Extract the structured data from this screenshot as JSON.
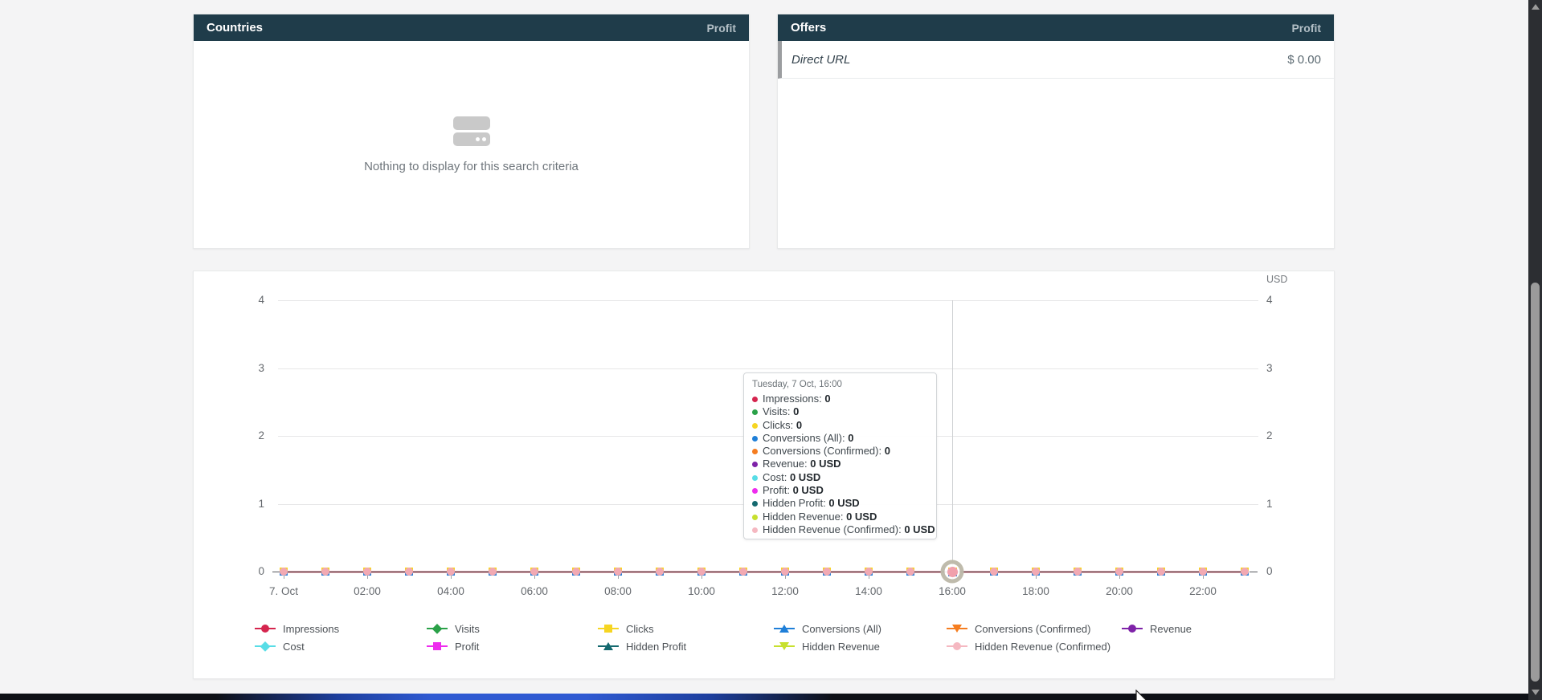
{
  "top_panels": {
    "countries": {
      "title": "Countries",
      "metric_label": "Profit",
      "empty_text": "Nothing to display for this search criteria"
    },
    "offers": {
      "title": "Offers",
      "metric_label": "Profit",
      "rows": [
        {
          "name": "Direct URL",
          "value": "$ 0.00"
        }
      ]
    }
  },
  "chart_data": {
    "type": "line",
    "title": "",
    "unit_label": "USD",
    "xlabel": "",
    "ylabel": "",
    "ylim": [
      0,
      4
    ],
    "yticks": [
      0,
      1,
      2,
      3,
      4
    ],
    "y_axis_sides": "both",
    "grid": true,
    "legend_position": "bottom",
    "x": [
      "00:00",
      "01:00",
      "02:00",
      "03:00",
      "04:00",
      "05:00",
      "06:00",
      "07:00",
      "08:00",
      "09:00",
      "10:00",
      "11:00",
      "12:00",
      "13:00",
      "14:00",
      "15:00",
      "16:00",
      "17:00",
      "18:00",
      "19:00",
      "20:00",
      "21:00",
      "22:00",
      "23:00"
    ],
    "x_tick_labels": [
      "7. Oct",
      "02:00",
      "04:00",
      "06:00",
      "08:00",
      "10:00",
      "12:00",
      "14:00",
      "16:00",
      "18:00",
      "20:00",
      "22:00"
    ],
    "x_tick_every": 2,
    "hovered_point": {
      "x_index": 16,
      "x_label": "16:00"
    },
    "series": [
      {
        "name": "Impressions",
        "color": "#d5254e",
        "marker": "circle",
        "values": [
          0,
          0,
          0,
          0,
          0,
          0,
          0,
          0,
          0,
          0,
          0,
          0,
          0,
          0,
          0,
          0,
          0,
          0,
          0,
          0,
          0,
          0,
          0,
          0
        ]
      },
      {
        "name": "Visits",
        "color": "#2aa148",
        "marker": "diamond",
        "values": [
          0,
          0,
          0,
          0,
          0,
          0,
          0,
          0,
          0,
          0,
          0,
          0,
          0,
          0,
          0,
          0,
          0,
          0,
          0,
          0,
          0,
          0,
          0,
          0
        ]
      },
      {
        "name": "Clicks",
        "color": "#f6d522",
        "marker": "square",
        "values": [
          0,
          0,
          0,
          0,
          0,
          0,
          0,
          0,
          0,
          0,
          0,
          0,
          0,
          0,
          0,
          0,
          0,
          0,
          0,
          0,
          0,
          0,
          0,
          0
        ]
      },
      {
        "name": "Conversions (All)",
        "color": "#1f7fd8",
        "marker": "triangle-up",
        "values": [
          0,
          0,
          0,
          0,
          0,
          0,
          0,
          0,
          0,
          0,
          0,
          0,
          0,
          0,
          0,
          0,
          0,
          0,
          0,
          0,
          0,
          0,
          0,
          0
        ]
      },
      {
        "name": "Conversions (Confirmed)",
        "color": "#f57d20",
        "marker": "triangle-down",
        "values": [
          0,
          0,
          0,
          0,
          0,
          0,
          0,
          0,
          0,
          0,
          0,
          0,
          0,
          0,
          0,
          0,
          0,
          0,
          0,
          0,
          0,
          0,
          0,
          0
        ]
      },
      {
        "name": "Revenue",
        "color": "#7e22a8",
        "marker": "circle",
        "values": [
          0,
          0,
          0,
          0,
          0,
          0,
          0,
          0,
          0,
          0,
          0,
          0,
          0,
          0,
          0,
          0,
          0,
          0,
          0,
          0,
          0,
          0,
          0,
          0
        ]
      },
      {
        "name": "Cost",
        "color": "#58dde6",
        "marker": "diamond",
        "values": [
          0,
          0,
          0,
          0,
          0,
          0,
          0,
          0,
          0,
          0,
          0,
          0,
          0,
          0,
          0,
          0,
          0,
          0,
          0,
          0,
          0,
          0,
          0,
          0
        ]
      },
      {
        "name": "Profit",
        "color": "#ee2cee",
        "marker": "square",
        "values": [
          0,
          0,
          0,
          0,
          0,
          0,
          0,
          0,
          0,
          0,
          0,
          0,
          0,
          0,
          0,
          0,
          0,
          0,
          0,
          0,
          0,
          0,
          0,
          0
        ]
      },
      {
        "name": "Hidden Profit",
        "color": "#14696f",
        "marker": "triangle-up",
        "values": [
          0,
          0,
          0,
          0,
          0,
          0,
          0,
          0,
          0,
          0,
          0,
          0,
          0,
          0,
          0,
          0,
          0,
          0,
          0,
          0,
          0,
          0,
          0,
          0
        ]
      },
      {
        "name": "Hidden Revenue",
        "color": "#c7e02e",
        "marker": "triangle-down",
        "values": [
          0,
          0,
          0,
          0,
          0,
          0,
          0,
          0,
          0,
          0,
          0,
          0,
          0,
          0,
          0,
          0,
          0,
          0,
          0,
          0,
          0,
          0,
          0,
          0
        ]
      },
      {
        "name": "Hidden Revenue (Confirmed)",
        "color": "#f5b8c1",
        "marker": "circle",
        "values": [
          0,
          0,
          0,
          0,
          0,
          0,
          0,
          0,
          0,
          0,
          0,
          0,
          0,
          0,
          0,
          0,
          0,
          0,
          0,
          0,
          0,
          0,
          0,
          0
        ]
      }
    ]
  },
  "tooltip": {
    "title": "Tuesday, 7 Oct, 16:00",
    "items": [
      {
        "label": "Impressions",
        "value": "0",
        "color": "#d5254e"
      },
      {
        "label": "Visits",
        "value": "0",
        "color": "#2aa148"
      },
      {
        "label": "Clicks",
        "value": "0",
        "color": "#f6d522"
      },
      {
        "label": "Conversions (All)",
        "value": "0",
        "color": "#1f7fd8"
      },
      {
        "label": "Conversions (Confirmed)",
        "value": "0",
        "color": "#f57d20"
      },
      {
        "label": "Revenue",
        "value": "0 USD",
        "color": "#7e22a8"
      },
      {
        "label": "Cost",
        "value": "0 USD",
        "color": "#58dde6"
      },
      {
        "label": "Profit",
        "value": "0 USD",
        "color": "#ee2cee"
      },
      {
        "label": "Hidden Profit",
        "value": "0 USD",
        "color": "#14696f"
      },
      {
        "label": "Hidden Revenue",
        "value": "0 USD",
        "color": "#c7e02e"
      },
      {
        "label": "Hidden Revenue (Confirmed)",
        "value": "0 USD",
        "color": "#f5b8c1"
      }
    ]
  },
  "colors": {
    "panel_header_bg": "#1f3c4a",
    "page_bg": "#f4f4f5",
    "marker_fill": "#f2a9b3",
    "bottom_bar_glow": "#2f5ad2"
  }
}
